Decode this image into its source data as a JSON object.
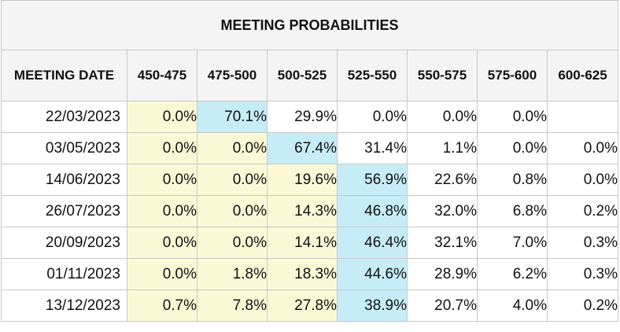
{
  "chart_data": {
    "type": "table",
    "title": "MEETING PROBABILITIES",
    "columns": [
      "MEETING DATE",
      "450-475",
      "475-500",
      "500-525",
      "525-550",
      "550-575",
      "575-600",
      "600-625"
    ],
    "rows": [
      {
        "date": "22/03/2023",
        "values": [
          "0.0%",
          "70.1%",
          "29.9%",
          "0.0%",
          "0.0%",
          "0.0%",
          ""
        ],
        "highlight": [
          "yellow",
          "blue",
          "none",
          "none",
          "none",
          "none",
          "none"
        ]
      },
      {
        "date": "03/05/2023",
        "values": [
          "0.0%",
          "0.0%",
          "67.4%",
          "31.4%",
          "1.1%",
          "0.0%",
          "0.0%"
        ],
        "highlight": [
          "yellow",
          "yellow",
          "blue",
          "none",
          "none",
          "none",
          "none"
        ]
      },
      {
        "date": "14/06/2023",
        "values": [
          "0.0%",
          "0.0%",
          "19.6%",
          "56.9%",
          "22.6%",
          "0.8%",
          "0.0%"
        ],
        "highlight": [
          "yellow",
          "yellow",
          "yellow",
          "blue",
          "none",
          "none",
          "none"
        ]
      },
      {
        "date": "26/07/2023",
        "values": [
          "0.0%",
          "0.0%",
          "14.3%",
          "46.8%",
          "32.0%",
          "6.8%",
          "0.2%"
        ],
        "highlight": [
          "yellow",
          "yellow",
          "yellow",
          "blue",
          "none",
          "none",
          "none"
        ]
      },
      {
        "date": "20/09/2023",
        "values": [
          "0.0%",
          "0.0%",
          "14.1%",
          "46.4%",
          "32.1%",
          "7.0%",
          "0.3%"
        ],
        "highlight": [
          "yellow",
          "yellow",
          "yellow",
          "blue",
          "none",
          "none",
          "none"
        ]
      },
      {
        "date": "01/11/2023",
        "values": [
          "0.0%",
          "1.8%",
          "18.3%",
          "44.6%",
          "28.9%",
          "6.2%",
          "0.3%"
        ],
        "highlight": [
          "yellow",
          "yellow",
          "yellow",
          "blue",
          "none",
          "none",
          "none"
        ]
      },
      {
        "date": "13/12/2023",
        "values": [
          "0.7%",
          "7.8%",
          "27.8%",
          "38.9%",
          "20.7%",
          "4.0%",
          "0.2%"
        ],
        "highlight": [
          "yellow",
          "yellow",
          "yellow",
          "blue",
          "none",
          "none",
          "none"
        ]
      }
    ],
    "colors": {
      "yellow": "#fbf8d6",
      "blue": "#c6ecf8",
      "header_bg": "#f4f4f4",
      "border": "#c8c8c8"
    }
  }
}
